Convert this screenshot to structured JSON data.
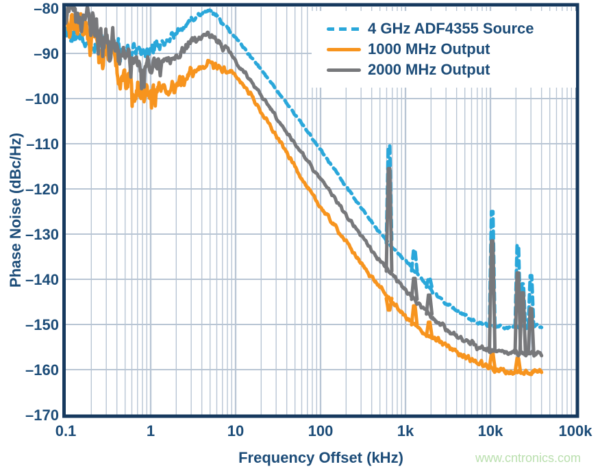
{
  "watermark": {
    "text": "www.cntronics.com",
    "color": "#b9dfad"
  },
  "colors": {
    "background": "#ffffff",
    "grid": "#b8c5d4",
    "axis_border": "#16395e",
    "text": "#1c4c78"
  },
  "chart_data": {
    "type": "line",
    "title": "",
    "xlabel": "Frequency Offset (kHz)",
    "ylabel": "Phase Noise (dBc/Hz)",
    "x_scale": "log",
    "xlim": [
      0.1,
      100000
    ],
    "ylim": [
      -170,
      -80
    ],
    "grid": true,
    "legend_position": "top-right",
    "x_ticks": [
      {
        "v": 0.1,
        "label": "0.1"
      },
      {
        "v": 1,
        "label": "1"
      },
      {
        "v": 10,
        "label": "10"
      },
      {
        "v": 100,
        "label": "100"
      },
      {
        "v": 1000,
        "label": "1k"
      },
      {
        "v": 10000,
        "label": "10k"
      },
      {
        "v": 100000,
        "label": "100k"
      }
    ],
    "y_ticks": [
      {
        "v": -80,
        "label": "–80"
      },
      {
        "v": -90,
        "label": "–90"
      },
      {
        "v": -100,
        "label": "–100"
      },
      {
        "v": -110,
        "label": "–110"
      },
      {
        "v": -120,
        "label": "–120"
      },
      {
        "v": -130,
        "label": "–130"
      },
      {
        "v": -140,
        "label": "–140"
      },
      {
        "v": -150,
        "label": "–150"
      },
      {
        "v": -160,
        "label": "–160"
      },
      {
        "v": -170,
        "label": "–170"
      }
    ],
    "series": [
      {
        "name": "4 GHz ADF4355 Source",
        "color": "#2aa7da",
        "dash": true,
        "points": [
          [
            0.1,
            -85.5
          ],
          [
            0.13,
            -86.6
          ],
          [
            0.18,
            -87.6
          ],
          [
            0.25,
            -88.4
          ],
          [
            0.35,
            -89.1
          ],
          [
            0.5,
            -89.7
          ],
          [
            0.7,
            -89.8
          ],
          [
            1,
            -89.1
          ],
          [
            1.4,
            -87.9
          ],
          [
            2,
            -85.7
          ],
          [
            3,
            -82.7
          ],
          [
            4.3,
            -80.6
          ],
          [
            5.5,
            -81.2
          ],
          [
            7,
            -83.1
          ],
          [
            10,
            -86.5
          ],
          [
            15,
            -90.7
          ],
          [
            20,
            -93.5
          ],
          [
            30,
            -98
          ],
          [
            50,
            -103.5
          ],
          [
            70,
            -107.3
          ],
          [
            100,
            -111.5
          ],
          [
            150,
            -116
          ],
          [
            200,
            -119.5
          ],
          [
            300,
            -124.2
          ],
          [
            500,
            -129.8
          ],
          [
            700,
            -132.8
          ],
          [
            1000,
            -136
          ],
          [
            1500,
            -139.6
          ],
          [
            2000,
            -142.2
          ],
          [
            3000,
            -145.3
          ],
          [
            5000,
            -148.2
          ],
          [
            7000,
            -149.6
          ],
          [
            10000,
            -150.3
          ],
          [
            15000,
            -150.6
          ],
          [
            20000,
            -150.6
          ],
          [
            30000,
            -150.5
          ],
          [
            40000,
            -150.4
          ]
        ],
        "spurs": [
          [
            640,
            -110.5
          ],
          [
            1270,
            -133.5
          ],
          [
            1900,
            -139.7
          ],
          [
            10500,
            -125
          ],
          [
            21000,
            -132.5
          ],
          [
            24000,
            -141
          ],
          [
            30000,
            -139.2
          ]
        ]
      },
      {
        "name": "1000 MHz Output",
        "color": "#f7941e",
        "dash": false,
        "points": [
          [
            0.1,
            -82
          ],
          [
            0.13,
            -83.6
          ],
          [
            0.18,
            -86
          ],
          [
            0.25,
            -89.5
          ],
          [
            0.35,
            -93
          ],
          [
            0.5,
            -95.8
          ],
          [
            0.7,
            -97.5
          ],
          [
            1,
            -98.4
          ],
          [
            1.5,
            -98.4
          ],
          [
            2,
            -97.2
          ],
          [
            3,
            -94.5
          ],
          [
            4.6,
            -92.3
          ],
          [
            6,
            -92.9
          ],
          [
            8,
            -93.9
          ],
          [
            10,
            -94.9
          ],
          [
            15,
            -99
          ],
          [
            20,
            -103
          ],
          [
            30,
            -108.2
          ],
          [
            50,
            -115
          ],
          [
            70,
            -119.8
          ],
          [
            100,
            -124
          ],
          [
            150,
            -128.4
          ],
          [
            200,
            -131.7
          ],
          [
            300,
            -136.5
          ],
          [
            500,
            -141.8
          ],
          [
            700,
            -145.1
          ],
          [
            1000,
            -148.3
          ],
          [
            1500,
            -151.3
          ],
          [
            2000,
            -152.9
          ],
          [
            3000,
            -154.6
          ],
          [
            5000,
            -157
          ],
          [
            7000,
            -158.4
          ],
          [
            10000,
            -159.6
          ],
          [
            15000,
            -160.4
          ],
          [
            20000,
            -160.6
          ],
          [
            25000,
            -160.7
          ],
          [
            30000,
            -160.5
          ],
          [
            40000,
            -160.2
          ]
        ],
        "spurs": [
          [
            640,
            -146.8
          ],
          [
            1270,
            -145.9
          ],
          [
            1900,
            -149.5
          ],
          [
            10500,
            -156.3
          ],
          [
            21000,
            -157.5
          ]
        ]
      },
      {
        "name": "2000 MHz Output",
        "color": "#77787b",
        "dash": false,
        "points": [
          [
            0.1,
            -80.3
          ],
          [
            0.13,
            -81.2
          ],
          [
            0.18,
            -83
          ],
          [
            0.25,
            -86
          ],
          [
            0.35,
            -88.8
          ],
          [
            0.5,
            -91
          ],
          [
            0.7,
            -92.3
          ],
          [
            1,
            -92.6
          ],
          [
            1.4,
            -91.9
          ],
          [
            2,
            -90.4
          ],
          [
            3,
            -87.6
          ],
          [
            4.5,
            -85.9
          ],
          [
            6,
            -87.2
          ],
          [
            8,
            -89.6
          ],
          [
            10,
            -91.8
          ],
          [
            15,
            -96
          ],
          [
            20,
            -99.2
          ],
          [
            30,
            -104
          ],
          [
            50,
            -110
          ],
          [
            70,
            -113.9
          ],
          [
            100,
            -117.8
          ],
          [
            150,
            -122.3
          ],
          [
            200,
            -125.7
          ],
          [
            300,
            -130.3
          ],
          [
            500,
            -136
          ],
          [
            700,
            -139
          ],
          [
            1000,
            -142.5
          ],
          [
            1500,
            -145.8
          ],
          [
            2000,
            -148.1
          ],
          [
            3000,
            -150.9
          ],
          [
            5000,
            -153.6
          ],
          [
            7000,
            -154.9
          ],
          [
            10000,
            -155.7
          ],
          [
            15000,
            -156.2
          ],
          [
            20000,
            -156.3
          ],
          [
            30000,
            -156.4
          ],
          [
            40000,
            -156.5
          ]
        ],
        "spurs": [
          [
            640,
            -115.5
          ],
          [
            1270,
            -139.8
          ],
          [
            1900,
            -143.5
          ],
          [
            10500,
            -131.5
          ],
          [
            21000,
            -138.6
          ],
          [
            24000,
            -143
          ],
          [
            30000,
            -146.5
          ]
        ]
      }
    ]
  }
}
